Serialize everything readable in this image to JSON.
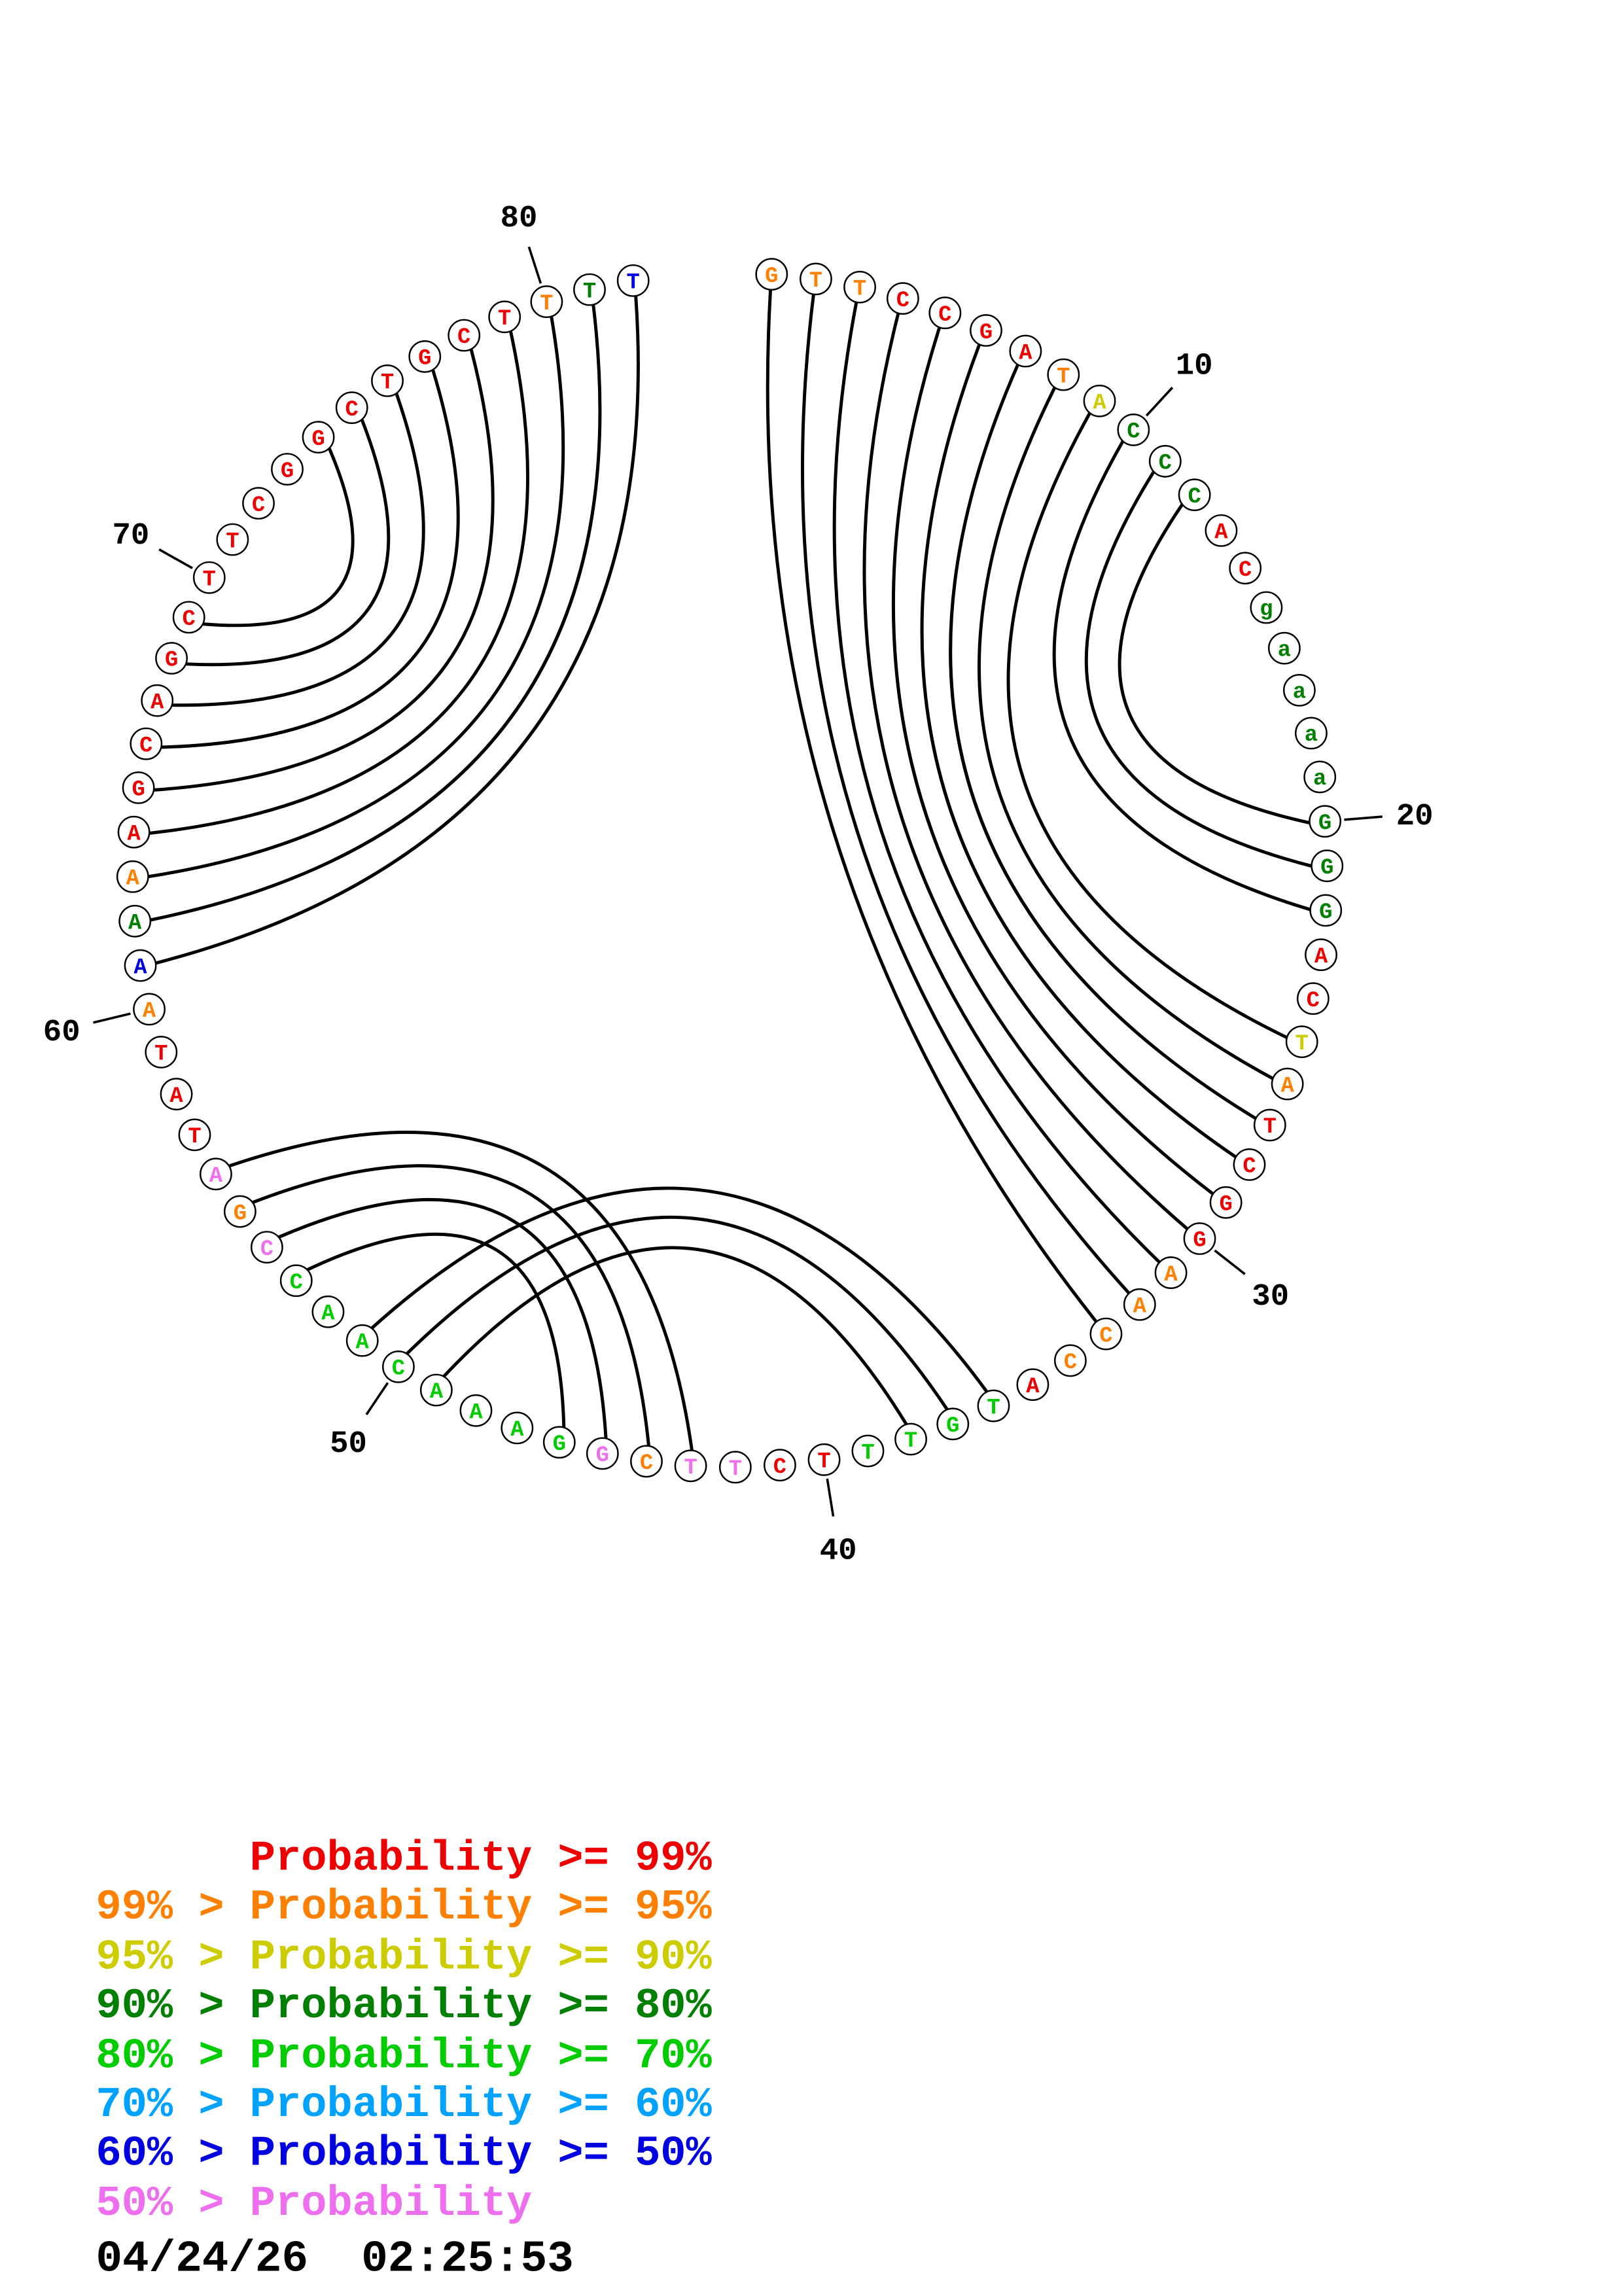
{
  "plot": {
    "description": "Circular base-pair probability plot of a nucleotide sequence; arcs join paired bases",
    "sequence": [
      {
        "base": "G",
        "color": "orange"
      },
      {
        "base": "T",
        "color": "orange"
      },
      {
        "base": "T",
        "color": "orange"
      },
      {
        "base": "C",
        "color": "red"
      },
      {
        "base": "C",
        "color": "red"
      },
      {
        "base": "G",
        "color": "red"
      },
      {
        "base": "A",
        "color": "red"
      },
      {
        "base": "T",
        "color": "orange"
      },
      {
        "base": "A",
        "color": "yellow"
      },
      {
        "base": "C",
        "color": "dgreen"
      },
      {
        "base": "C",
        "color": "dgreen"
      },
      {
        "base": "C",
        "color": "dgreen"
      },
      {
        "base": "A",
        "color": "red"
      },
      {
        "base": "C",
        "color": "red"
      },
      {
        "base": "g",
        "color": "dgreen"
      },
      {
        "base": "a",
        "color": "dgreen"
      },
      {
        "base": "a",
        "color": "dgreen"
      },
      {
        "base": "a",
        "color": "dgreen"
      },
      {
        "base": "a",
        "color": "dgreen"
      },
      {
        "base": "G",
        "color": "dgreen"
      },
      {
        "base": "G",
        "color": "dgreen"
      },
      {
        "base": "G",
        "color": "dgreen"
      },
      {
        "base": "A",
        "color": "red"
      },
      {
        "base": "C",
        "color": "red"
      },
      {
        "base": "T",
        "color": "yellow"
      },
      {
        "base": "A",
        "color": "orange"
      },
      {
        "base": "T",
        "color": "red"
      },
      {
        "base": "C",
        "color": "red"
      },
      {
        "base": "G",
        "color": "red"
      },
      {
        "base": "G",
        "color": "red"
      },
      {
        "base": "A",
        "color": "orange"
      },
      {
        "base": "A",
        "color": "orange"
      },
      {
        "base": "C",
        "color": "orange"
      },
      {
        "base": "C",
        "color": "orange"
      },
      {
        "base": "A",
        "color": "red"
      },
      {
        "base": "T",
        "color": "green"
      },
      {
        "base": "G",
        "color": "green"
      },
      {
        "base": "T",
        "color": "green"
      },
      {
        "base": "T",
        "color": "green"
      },
      {
        "base": "T",
        "color": "red"
      },
      {
        "base": "C",
        "color": "red"
      },
      {
        "base": "T",
        "color": "pink"
      },
      {
        "base": "T",
        "color": "pink"
      },
      {
        "base": "C",
        "color": "orange"
      },
      {
        "base": "G",
        "color": "pink"
      },
      {
        "base": "G",
        "color": "green"
      },
      {
        "base": "A",
        "color": "green"
      },
      {
        "base": "A",
        "color": "green"
      },
      {
        "base": "A",
        "color": "green"
      },
      {
        "base": "C",
        "color": "green"
      },
      {
        "base": "A",
        "color": "green"
      },
      {
        "base": "A",
        "color": "green"
      },
      {
        "base": "C",
        "color": "green"
      },
      {
        "base": "C",
        "color": "pink"
      },
      {
        "base": "G",
        "color": "orange"
      },
      {
        "base": "A",
        "color": "pink"
      },
      {
        "base": "T",
        "color": "red"
      },
      {
        "base": "A",
        "color": "red"
      },
      {
        "base": "T",
        "color": "red"
      },
      {
        "base": "A",
        "color": "orange"
      },
      {
        "base": "A",
        "color": "blue"
      },
      {
        "base": "A",
        "color": "dgreen"
      },
      {
        "base": "A",
        "color": "orange"
      },
      {
        "base": "A",
        "color": "red"
      },
      {
        "base": "G",
        "color": "red"
      },
      {
        "base": "C",
        "color": "red"
      },
      {
        "base": "A",
        "color": "red"
      },
      {
        "base": "G",
        "color": "red"
      },
      {
        "base": "C",
        "color": "red"
      },
      {
        "base": "T",
        "color": "red"
      },
      {
        "base": "T",
        "color": "red"
      },
      {
        "base": "C",
        "color": "red"
      },
      {
        "base": "G",
        "color": "red"
      },
      {
        "base": "G",
        "color": "red"
      },
      {
        "base": "C",
        "color": "red"
      },
      {
        "base": "T",
        "color": "red"
      },
      {
        "base": "G",
        "color": "red"
      },
      {
        "base": "C",
        "color": "red"
      },
      {
        "base": "T",
        "color": "red"
      },
      {
        "base": "T",
        "color": "orange"
      },
      {
        "base": "T",
        "color": "dgreen"
      },
      {
        "base": "T",
        "color": "blue"
      }
    ],
    "pairs": [
      [
        1,
        33
      ],
      [
        2,
        32
      ],
      [
        3,
        31
      ],
      [
        4,
        30
      ],
      [
        5,
        29
      ],
      [
        6,
        28
      ],
      [
        7,
        27
      ],
      [
        8,
        26
      ],
      [
        9,
        25
      ],
      [
        10,
        22
      ],
      [
        11,
        21
      ],
      [
        12,
        20
      ],
      [
        36,
        51
      ],
      [
        37,
        50
      ],
      [
        38,
        49
      ],
      [
        43,
        56
      ],
      [
        44,
        55
      ],
      [
        45,
        54
      ],
      [
        46,
        53
      ],
      [
        61,
        82
      ],
      [
        62,
        81
      ],
      [
        63,
        80
      ],
      [
        64,
        79
      ],
      [
        65,
        78
      ],
      [
        66,
        77
      ],
      [
        67,
        76
      ],
      [
        68,
        75
      ],
      [
        69,
        74
      ]
    ],
    "position_labels": [
      10,
      20,
      30,
      40,
      50,
      60,
      70,
      80
    ]
  },
  "palette": {
    "red": "#ee0000",
    "orange": "#ff8000",
    "yellow": "#cccc00",
    "dgreen": "#007f00",
    "green": "#00cc00",
    "lblue": "#00a2ff",
    "blue": "#0000e0",
    "pink": "#ee6fee"
  },
  "legend": {
    "items": [
      {
        "text": "      Probability >= 99%",
        "color": "red"
      },
      {
        "text": "99% > Probability >= 95%",
        "color": "orange"
      },
      {
        "text": "95% > Probability >= 90%",
        "color": "yellow"
      },
      {
        "text": "90% > Probability >= 80%",
        "color": "dgreen"
      },
      {
        "text": "80% > Probability >= 70%",
        "color": "green"
      },
      {
        "text": "70% > Probability >= 60%",
        "color": "lblue"
      },
      {
        "text": "60% > Probability >= 50%",
        "color": "blue"
      },
      {
        "text": "50% > Probability",
        "color": "pink"
      }
    ]
  },
  "timestamp": "04/24/26  02:25:53"
}
